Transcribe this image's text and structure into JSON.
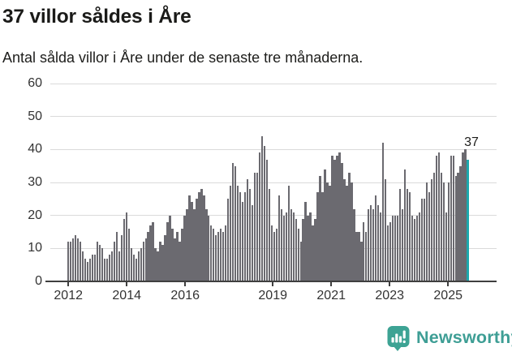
{
  "title": "37 villor såldes i Åre",
  "subtitle": "Antal sålda villor i Åre under de senaste tre månaderna.",
  "footer": {
    "brand": "Newsworthy",
    "logo_icon": "newsworthy-badge-icon"
  },
  "colors": {
    "bar": "#6b6a70",
    "highlight": "#1ca8ad",
    "grid": "#dadada",
    "axis": "#3f3f3f",
    "text": "#1d1d1b",
    "tick_label": "#333333",
    "brand_teal": "#3e9e95"
  },
  "chart_data": {
    "type": "bar",
    "title": "37 villor såldes i Åre",
    "subtitle": "Antal sålda villor i Åre under de senaste tre månaderna.",
    "frequency": "monthly",
    "x_start": "2012-01",
    "x_end": "2025-10",
    "ylim": [
      0,
      60
    ],
    "grid": true,
    "yticks": [
      0,
      10,
      20,
      30,
      40,
      50,
      60
    ],
    "xticks": [
      {
        "label": "2012",
        "index": 0
      },
      {
        "label": "2014",
        "index": 24
      },
      {
        "label": "2016",
        "index": 48
      },
      {
        "label": "2019",
        "index": 84
      },
      {
        "label": "2021",
        "index": 108
      },
      {
        "label": "2023",
        "index": 132
      },
      {
        "label": "2025",
        "index": 156
      }
    ],
    "values": [
      12,
      12,
      13,
      14,
      13,
      12,
      9,
      7,
      6,
      7,
      8,
      8,
      12,
      11,
      10,
      7,
      7,
      8,
      9,
      12,
      15,
      9,
      14,
      19,
      21,
      16,
      10,
      8,
      7,
      9,
      10,
      12,
      13,
      15,
      17,
      18,
      10,
      9,
      12,
      11,
      14,
      18,
      20,
      16,
      13,
      15,
      12,
      16,
      20,
      22,
      26,
      24,
      22,
      25,
      27,
      28,
      26,
      22,
      20,
      17,
      16,
      14,
      15,
      16,
      15,
      17,
      25,
      29,
      36,
      35,
      29,
      27,
      24,
      27,
      31,
      28,
      23,
      33,
      33,
      39,
      44,
      41,
      37,
      28,
      17,
      15,
      16,
      26,
      22,
      20,
      21,
      29,
      22,
      21,
      19,
      16,
      12,
      19,
      24,
      20,
      21,
      17,
      19,
      27,
      32,
      27,
      34,
      30,
      29,
      38,
      37,
      38,
      39,
      36,
      31,
      29,
      33,
      30,
      22,
      15,
      15,
      12,
      18,
      15,
      22,
      23,
      22,
      26,
      23,
      21,
      42,
      31,
      17,
      18,
      20,
      20,
      20,
      28,
      22,
      34,
      28,
      27,
      20,
      19,
      20,
      21,
      25,
      25,
      30,
      27,
      31,
      33,
      38,
      39,
      33,
      30,
      21,
      30,
      38,
      38,
      32,
      33,
      35,
      39,
      40,
      37
    ],
    "highlight_last": true,
    "last_value": 37,
    "annotation_label": "37",
    "legend": null
  }
}
